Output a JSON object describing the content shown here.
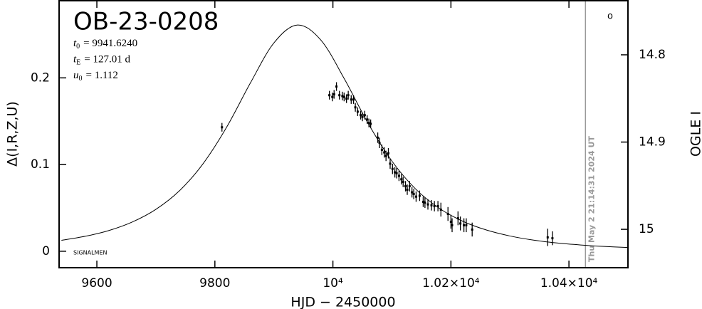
{
  "chart_data": {
    "type": "scatter",
    "title": "OB-23-0208",
    "parameters": [
      {
        "symbol": "t",
        "sub": "0",
        "text": "= 9941.6240"
      },
      {
        "symbol": "t",
        "sub": "E",
        "text": "= 127.01 d"
      },
      {
        "symbol": "u",
        "sub": "0",
        "text": "= 1.112"
      }
    ],
    "credit": "SIGNALMEN",
    "marker_label": "o",
    "x_label": "HJD − 2450000",
    "y_label": "Δ(I,R,Z,U)",
    "y2_label": "OGLE I",
    "xlim": [
      9536,
      10500
    ],
    "xticks": [
      9600,
      9800,
      {
        "value": 10000,
        "label": "10⁴"
      },
      {
        "value": 10200,
        "label": "1.02×10⁴"
      },
      {
        "value": 10400,
        "label": "1.04×10⁴"
      }
    ],
    "ylim": [
      -0.019,
      0.289
    ],
    "yticks": [
      0,
      0.1,
      0.2
    ],
    "y2lim": [
      15.044,
      14.738
    ],
    "y2ticks": [
      14.8,
      14.9,
      15
    ],
    "color": "#000000",
    "now_line": {
      "x": 10428,
      "label": "Thu May  2 21:14:31 2024 UT",
      "color": "#999999"
    },
    "model": {
      "x": [
        9540,
        9580,
        9620,
        9660,
        9700,
        9740,
        9780,
        9820,
        9860,
        9900,
        9940,
        9980,
        10020,
        10060,
        10100,
        10140,
        10180,
        10220,
        10260,
        10300,
        10340,
        10380,
        10420,
        10460,
        10500
      ],
      "values": [
        0.0126,
        0.0172,
        0.0238,
        0.0337,
        0.0483,
        0.0698,
        0.101,
        0.1432,
        0.1939,
        0.2403,
        0.261,
        0.2433,
        0.1981,
        0.1471,
        0.104,
        0.0719,
        0.0497,
        0.0346,
        0.0245,
        0.0176,
        0.0128,
        0.0095,
        0.0072,
        0.0055,
        0.0043
      ]
    },
    "observations": {
      "x": [
        9812,
        9994,
        9999,
        10002,
        10006,
        10011,
        10016,
        10019,
        10023,
        10026,
        10031,
        10035,
        10038,
        10042,
        10047,
        10050,
        10054,
        10058,
        10061,
        10064,
        10076,
        10079,
        10083,
        10087,
        10090,
        10094,
        10097,
        10101,
        10105,
        10108,
        10112,
        10116,
        10119,
        10123,
        10126,
        10130,
        10134,
        10137,
        10141,
        10147,
        10153,
        10156,
        10161,
        10167,
        10172,
        10178,
        10183,
        10195,
        10200,
        10202,
        10212,
        10216,
        10222,
        10226,
        10236,
        10364,
        10372
      ],
      "values": [
        0.143,
        0.18,
        0.178,
        0.181,
        0.19,
        0.18,
        0.179,
        0.178,
        0.176,
        0.18,
        0.175,
        0.175,
        0.166,
        0.161,
        0.157,
        0.155,
        0.157,
        0.152,
        0.148,
        0.147,
        0.131,
        0.125,
        0.117,
        0.114,
        0.11,
        0.113,
        0.101,
        0.095,
        0.091,
        0.09,
        0.087,
        0.083,
        0.08,
        0.075,
        0.071,
        0.075,
        0.068,
        0.066,
        0.063,
        0.064,
        0.057,
        0.056,
        0.054,
        0.053,
        0.052,
        0.052,
        0.048,
        0.043,
        0.034,
        0.03,
        0.038,
        0.032,
        0.03,
        0.03,
        0.025,
        0.016,
        0.015
      ],
      "errors": [
        0.005,
        0.005,
        0.005,
        0.005,
        0.005,
        0.005,
        0.005,
        0.005,
        0.005,
        0.005,
        0.005,
        0.005,
        0.005,
        0.005,
        0.005,
        0.005,
        0.005,
        0.005,
        0.005,
        0.005,
        0.006,
        0.006,
        0.006,
        0.006,
        0.006,
        0.006,
        0.006,
        0.006,
        0.006,
        0.006,
        0.006,
        0.006,
        0.006,
        0.006,
        0.006,
        0.006,
        0.006,
        0.006,
        0.006,
        0.006,
        0.006,
        0.006,
        0.006,
        0.006,
        0.006,
        0.006,
        0.008,
        0.008,
        0.008,
        0.008,
        0.008,
        0.008,
        0.008,
        0.008,
        0.008,
        0.01,
        0.008
      ]
    }
  }
}
